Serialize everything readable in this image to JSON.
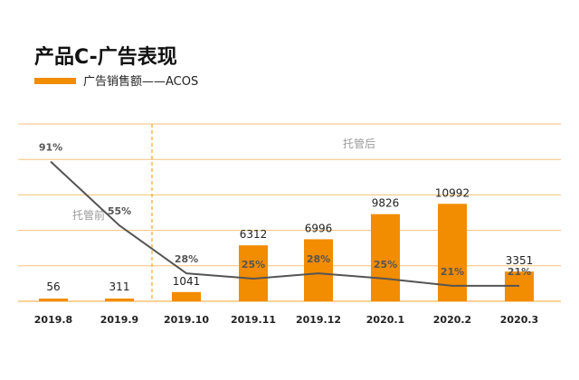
{
  "title": "产品C-广告表现",
  "legend": {
    "label": "广告销售额——ACOS"
  },
  "annotations": {
    "before": "托管前",
    "after": "托管后"
  },
  "colors": {
    "bar": "#F28C00",
    "line": "#555555",
    "grid": "#F5C27A",
    "divider": "#F5A623",
    "pct_text": "#555555",
    "value_text": "#222222",
    "annotation_text": "#9B9B9B",
    "title_text": "#111111"
  },
  "chart_data": {
    "type": "bar",
    "title": "产品C-广告表现",
    "categories": [
      "2019.8",
      "2019.9",
      "2019.10",
      "2019.11",
      "2019.12",
      "2020.1",
      "2020.2",
      "2020.3"
    ],
    "series": [
      {
        "name": "广告销售额",
        "type": "bar",
        "values": [
          56,
          311,
          1041,
          6312,
          6996,
          9826,
          10992,
          3351
        ]
      },
      {
        "name": "ACOS",
        "type": "line",
        "values": [
          91,
          55,
          28,
          25,
          28,
          25,
          21,
          21
        ],
        "labels": [
          "91%",
          "55%",
          "28%",
          "25%",
          "28%",
          "25%",
          "21%",
          "21%"
        ]
      }
    ],
    "ylim_bars": [
      0,
      20000
    ],
    "ylim_line": [
      0,
      100
    ],
    "grid": true,
    "legend_position": "top-left"
  }
}
